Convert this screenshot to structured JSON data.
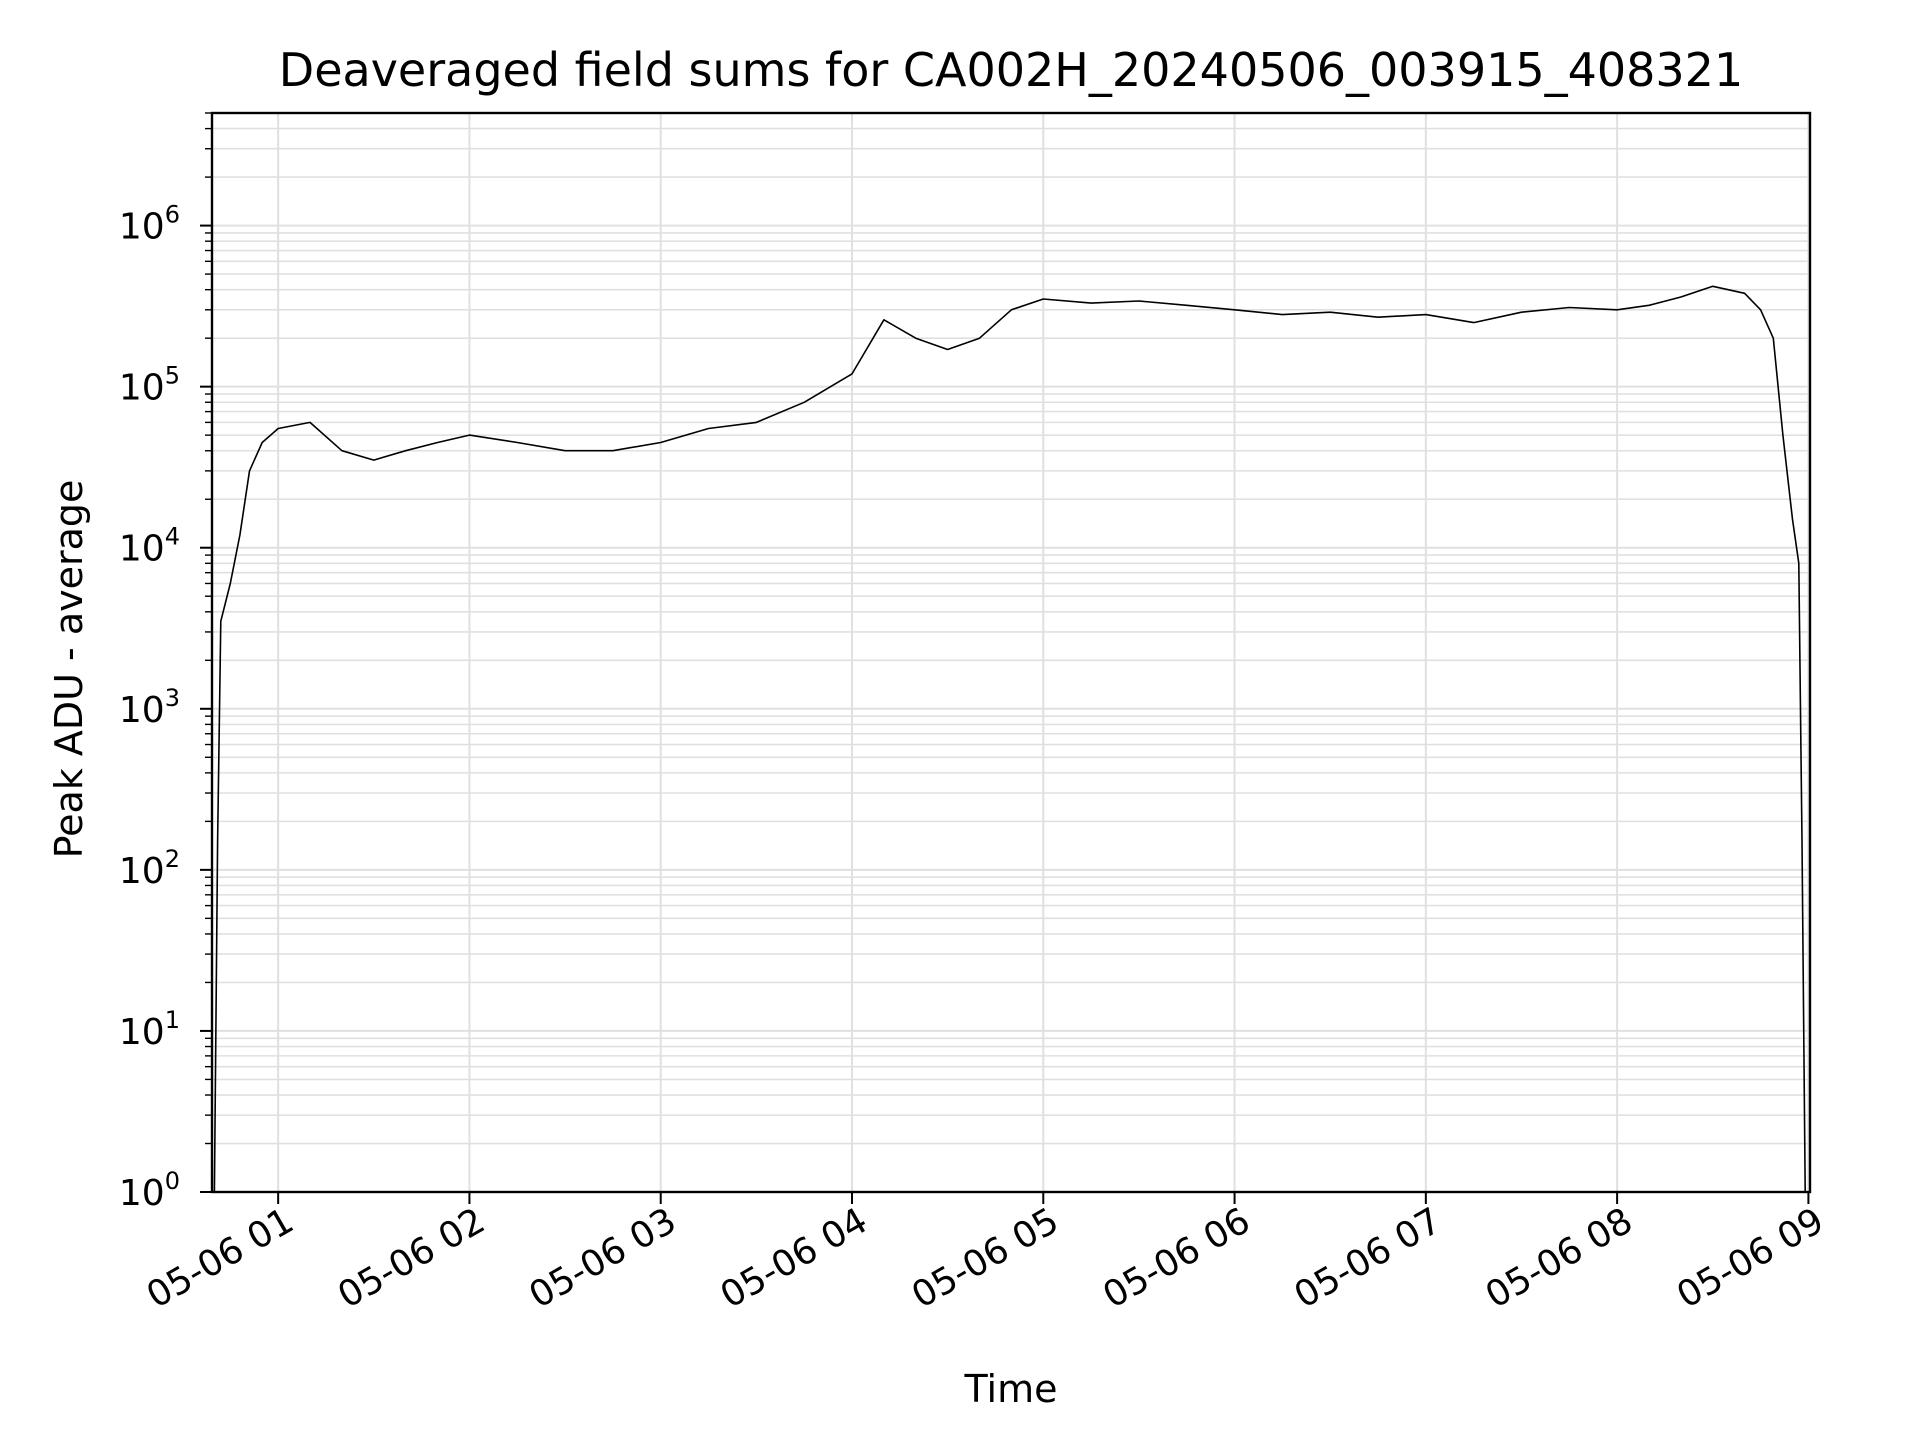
{
  "chart_data": {
    "type": "line",
    "title": "Deaveraged field sums for CA002H_20240506_003915_408321",
    "xlabel": "Time",
    "ylabel": "Peak ADU - average",
    "yscale": "log",
    "ylim": [
      1,
      5000000
    ],
    "xlim": [
      "2024-05-06 00:39:15",
      "2024-05-06 09:00:30"
    ],
    "grid": true,
    "x_tick_labels": [
      "05-06 01",
      "05-06 02",
      "05-06 03",
      "05-06 04",
      "05-06 05",
      "05-06 06",
      "05-06 07",
      "05-06 08",
      "05-06 09"
    ],
    "y_tick_labels": [
      {
        "base": "10",
        "exp": "0"
      },
      {
        "base": "10",
        "exp": "1"
      },
      {
        "base": "10",
        "exp": "2"
      },
      {
        "base": "10",
        "exp": "3"
      },
      {
        "base": "10",
        "exp": "4"
      },
      {
        "base": "10",
        "exp": "5"
      },
      {
        "base": "10",
        "exp": "6"
      }
    ],
    "series": [
      {
        "color": "#000000",
        "x": [
          "2024-05-06 00:40",
          "2024-05-06 00:41",
          "2024-05-06 00:42",
          "2024-05-06 00:45",
          "2024-05-06 00:48",
          "2024-05-06 00:51",
          "2024-05-06 00:55",
          "2024-05-06 01:00",
          "2024-05-06 01:10",
          "2024-05-06 01:20",
          "2024-05-06 01:30",
          "2024-05-06 01:40",
          "2024-05-06 01:50",
          "2024-05-06 02:00",
          "2024-05-06 02:15",
          "2024-05-06 02:30",
          "2024-05-06 02:45",
          "2024-05-06 03:00",
          "2024-05-06 03:15",
          "2024-05-06 03:30",
          "2024-05-06 03:45",
          "2024-05-06 04:00",
          "2024-05-06 04:10",
          "2024-05-06 04:20",
          "2024-05-06 04:30",
          "2024-05-06 04:40",
          "2024-05-06 04:50",
          "2024-05-06 05:00",
          "2024-05-06 05:15",
          "2024-05-06 05:30",
          "2024-05-06 05:45",
          "2024-05-06 06:00",
          "2024-05-06 06:15",
          "2024-05-06 06:30",
          "2024-05-06 06:45",
          "2024-05-06 07:00",
          "2024-05-06 07:15",
          "2024-05-06 07:30",
          "2024-05-06 07:45",
          "2024-05-06 08:00",
          "2024-05-06 08:10",
          "2024-05-06 08:20",
          "2024-05-06 08:30",
          "2024-05-06 08:40",
          "2024-05-06 08:45",
          "2024-05-06 08:49",
          "2024-05-06 08:52",
          "2024-05-06 08:55",
          "2024-05-06 08:57",
          "2024-05-06 08:58",
          "2024-05-06 08:59",
          "2024-05-06 09:00"
        ],
        "y": [
          1,
          150,
          3500,
          6000,
          12000,
          30000,
          45000,
          55000,
          60000,
          40000,
          35000,
          40000,
          45000,
          50000,
          45000,
          40000,
          40000,
          45000,
          55000,
          60000,
          80000,
          120000,
          260000,
          200000,
          170000,
          200000,
          300000,
          350000,
          330000,
          340000,
          320000,
          300000,
          280000,
          290000,
          270000,
          280000,
          250000,
          290000,
          310000,
          300000,
          320000,
          360000,
          420000,
          380000,
          300000,
          200000,
          50000,
          15000,
          8000,
          150,
          1,
          1
        ]
      }
    ]
  }
}
